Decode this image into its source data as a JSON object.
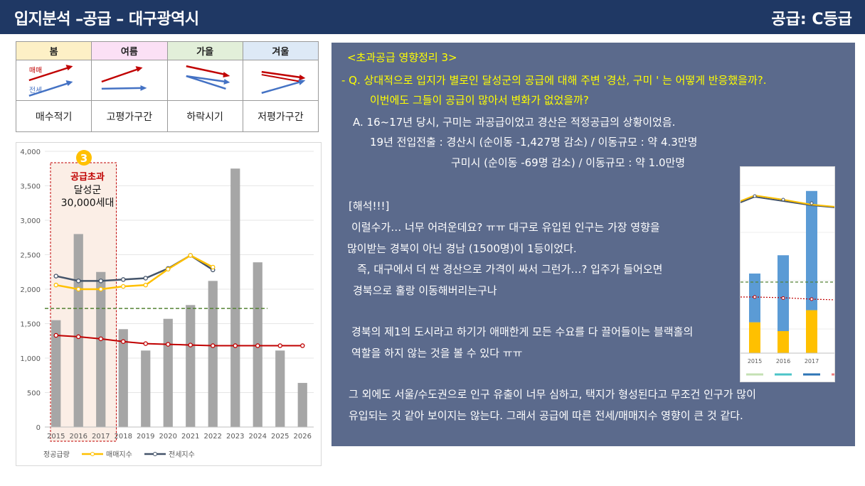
{
  "header": {
    "title": "입지분석 –공급 – 대구광역시",
    "grade": "공급: C등급"
  },
  "phases": [
    {
      "name": "봄",
      "bg": "#fdf0c6",
      "desc": "매수적기",
      "sale_dir": "up",
      "jeonse_dir": "up"
    },
    {
      "name": "여름",
      "bg": "#fbe0f5",
      "desc": "고평가구간",
      "sale_dir": "up",
      "jeonse_dir": "flat"
    },
    {
      "name": "가을",
      "bg": "#e2efd9",
      "desc": "하락시기",
      "sale_dir": "down",
      "jeonse_dir": "down-cross"
    },
    {
      "name": "겨울",
      "bg": "#dde9f6",
      "desc": "저평가구간",
      "sale_dir": "down",
      "jeonse_dir": "up-cross"
    }
  ],
  "phase_labels": {
    "sale": "매매",
    "jeonse": "전세"
  },
  "colors": {
    "sale": "#c00000",
    "jeonse": "#4472c4",
    "bar": "#a6a6a6",
    "sale_index": "#ffc000",
    "jeonse_index": "#44546a",
    "red_line": "#c00000",
    "proper_line": "#548235",
    "panel": "#5b6a8c",
    "highlight": "#c00000",
    "badge": "#ffc000"
  },
  "annotation": {
    "badge": "3",
    "line1": "공급초과",
    "line2": "달성군",
    "line3": "30,000세대"
  },
  "chart_data": {
    "type": "bar",
    "categories": [
      "2015",
      "2016",
      "2017",
      "2018",
      "2019",
      "2020",
      "2021",
      "2022",
      "2023",
      "2024",
      "2025",
      "2026"
    ],
    "ylim": [
      0,
      4000
    ],
    "yticks": [
      "0",
      "500",
      "1,000",
      "1,500",
      "2,000",
      "2,500",
      "3,000",
      "3,500",
      "4,000"
    ],
    "series": [
      {
        "name": "정공급량",
        "type": "bar",
        "values": [
          1550,
          2800,
          2250,
          1420,
          1110,
          1570,
          1770,
          2120,
          3750,
          2390,
          1110,
          640
        ]
      },
      {
        "name": "매매지수",
        "type": "line",
        "values": [
          2060,
          2000,
          2000,
          2040,
          2060,
          2290,
          2490,
          2320,
          null,
          null,
          null,
          null
        ]
      },
      {
        "name": "전세지수",
        "type": "line",
        "values": [
          2190,
          2120,
          2120,
          2140,
          2160,
          2300,
          2490,
          2280,
          null,
          null,
          null,
          null
        ]
      },
      {
        "type": "line",
        "values": [
          1330,
          1310,
          1280,
          1240,
          1210,
          1200,
          1190,
          1180,
          1180,
          1180,
          1180,
          1180
        ]
      }
    ],
    "reference_line": 1720,
    "highlight_categories": [
      "2015",
      "2016",
      "2017"
    ],
    "legend": [
      "정공급량",
      "매매지수",
      "전세지수"
    ],
    "legend_position": "bottom"
  },
  "inset_chart": {
    "type": "bar",
    "categories": [
      "2015",
      "2016",
      "2017"
    ],
    "series": [
      {
        "values": [
          140,
          100,
          195
        ]
      },
      {
        "values": [
          270,
          420,
          660
        ]
      }
    ]
  },
  "text": {
    "heading": "<초과공급 영향정리 3>",
    "q_line1": "- Q. 상대적으로 입지가 별로인 달성군의 공급에 대해 주변 '경산, 구미 ' 는 어떻게 반응했을까?.",
    "q_line2": "이번에도 그들이 공급이 많아서 변화가 없었을까?",
    "a_line1": "A. 16~17년 당시, 구미는 과공급이었고 경산은 적정공급의 상황이었음.",
    "a_line2": "19년 전입전출 : 경산시 (순이동 -1,427명 감소) / 이동규모 : 약 4.3만명",
    "a_line3": "구미시 (순이동 -69명 감소) / 이동규모 : 약 1.0만명",
    "interp_title": "[해석!!!]",
    "p1": "이럴수가… 너무 어려운데요? ㅠㅠ 대구로 유입된 인구는 가장 영향을",
    "p2": "많이받는 경북이 아닌 경남 (1500명)이 1등이었다.",
    "p3": "즉, 대구에서 더 싼 경산으로 가격이 싸서 그런가…? 입주가 들어오면",
    "p4": "경북으로 훌랑 이동해버리는구나",
    "p5": "경북의 제1의 도시라고 하기가 애매한게 모든 수요를 다 끌어들이는 블랙홀의",
    "p6": "역할을 하지 않는 것을 볼 수 있다 ㅠㅠ",
    "p7": "그 외에도 서울/수도권으로 인구 유출이 너무 심하고, 택지가 형성된다고 무조건 인구가 많이",
    "p8": "유입되는 것 같아 보이지는 않는다. 그래서 공급에 따른 전세/매매지수 영향이 큰 것 같다."
  }
}
